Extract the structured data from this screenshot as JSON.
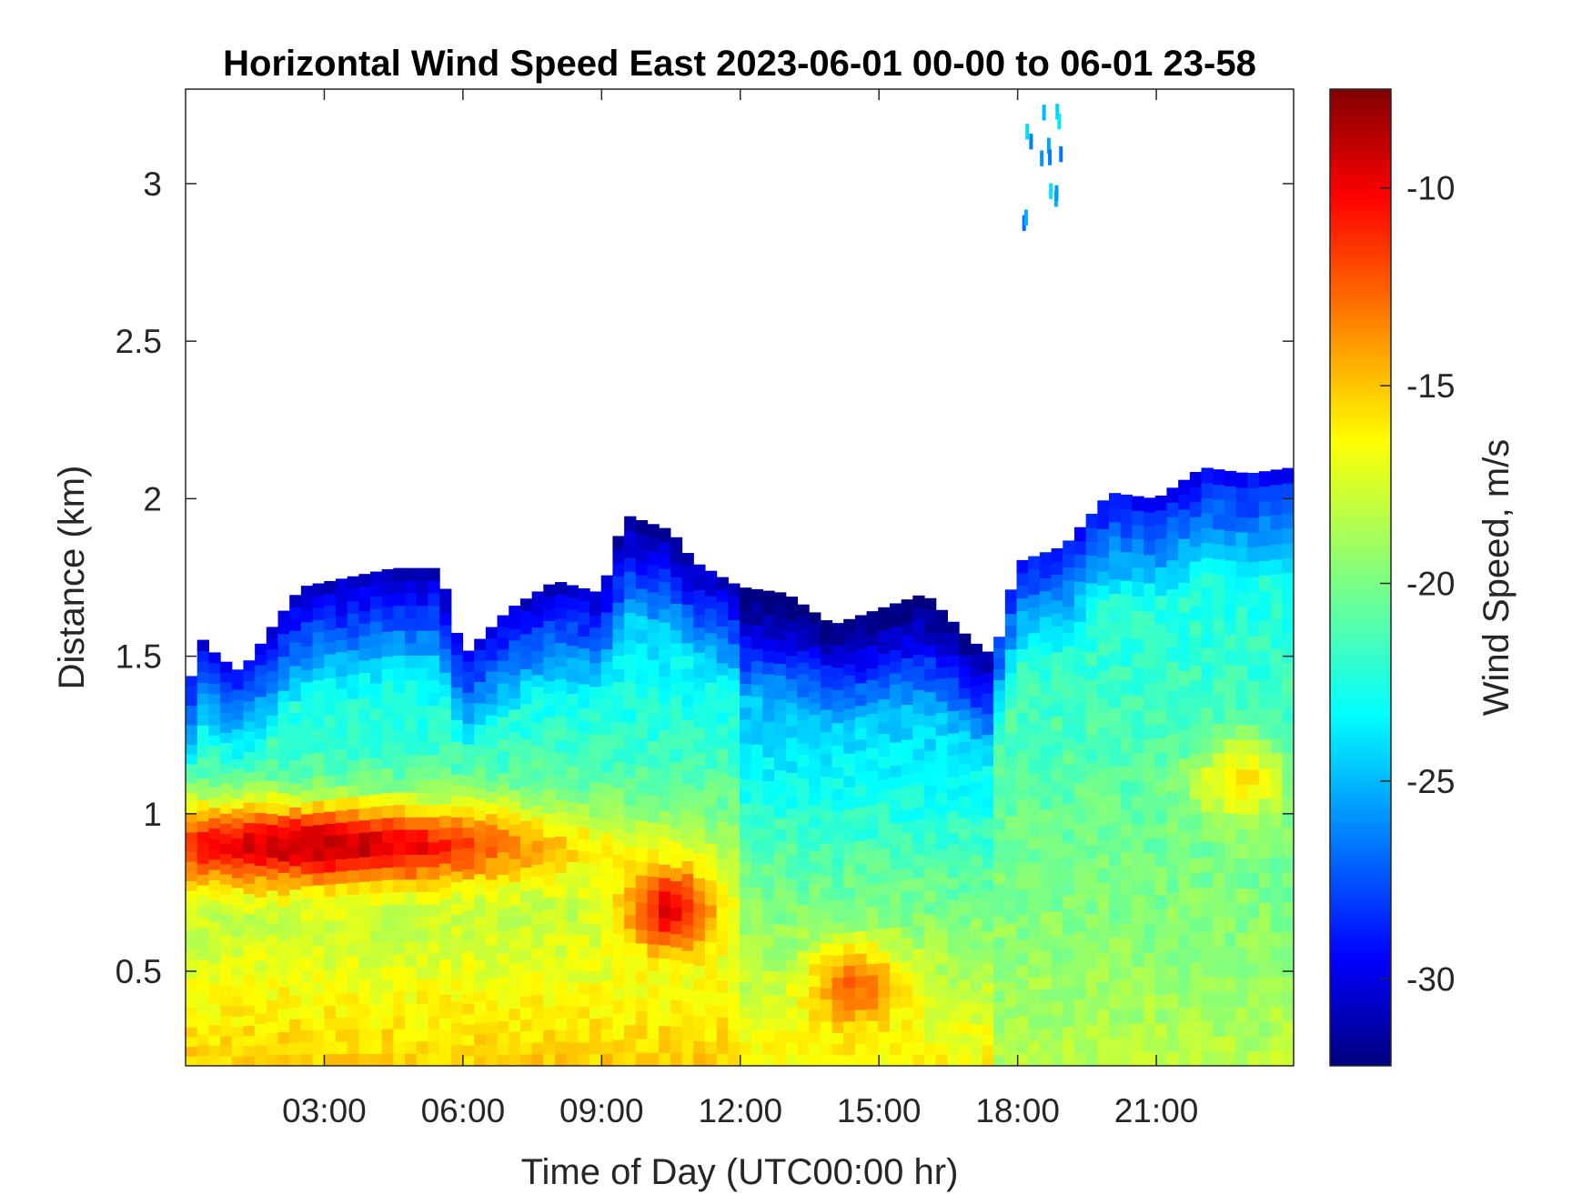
{
  "chart_data": {
    "type": "heatmap",
    "title": "Horizontal Wind Speed East 2023-06-01 00-00 to 06-01 23-58",
    "xlabel": "Time of Day (UTC00:00 hr)",
    "ylabel": "Distance (km)",
    "colorbar_label": "Wind Speed, m/s",
    "x_unit": "hours",
    "xlim": [
      0,
      23.97
    ],
    "ylim": [
      0.2,
      3.3
    ],
    "clim": [
      -32.2,
      -7.5
    ],
    "colormap": "jet",
    "x_ticks": [
      3,
      6,
      9,
      12,
      15,
      18,
      21
    ],
    "x_tick_labels": [
      "03:00",
      "06:00",
      "09:00",
      "12:00",
      "15:00",
      "18:00",
      "21:00"
    ],
    "y_ticks": [
      0.5,
      1,
      1.5,
      2,
      2.5,
      3
    ],
    "y_tick_labels": [
      "0.5",
      "1",
      "1.5",
      "2",
      "2.5",
      "3"
    ],
    "colorbar_ticks": [
      -30,
      -25,
      -20,
      -15,
      -10
    ],
    "colorbar_tick_labels": [
      "-30",
      "-25",
      "-20",
      "-15",
      "-10"
    ],
    "grid": false,
    "data_top_km": [
      [
        0,
        1.2
      ],
      [
        0.2,
        1.58
      ],
      [
        0.7,
        1.5
      ],
      [
        1.2,
        1.45
      ],
      [
        2,
        1.62
      ],
      [
        2.5,
        1.72
      ],
      [
        3.5,
        1.75
      ],
      [
        4.5,
        1.78
      ],
      [
        5.5,
        1.78
      ],
      [
        6,
        1.5
      ],
      [
        7,
        1.65
      ],
      [
        8,
        1.74
      ],
      [
        9,
        1.7
      ],
      [
        9.5,
        1.95
      ],
      [
        10.5,
        1.9
      ],
      [
        11,
        1.8
      ],
      [
        12,
        1.72
      ],
      [
        13,
        1.7
      ],
      [
        14,
        1.6
      ],
      [
        15,
        1.65
      ],
      [
        16,
        1.7
      ],
      [
        17,
        1.55
      ],
      [
        17.5,
        1.5
      ],
      [
        18,
        1.8
      ],
      [
        19,
        1.85
      ],
      [
        20,
        2.02
      ],
      [
        21,
        2.0
      ],
      [
        22,
        2.1
      ],
      [
        23,
        2.08
      ],
      [
        23.97,
        2.1
      ]
    ],
    "features": [
      {
        "name": "strong-jet",
        "t_start": 0,
        "t_end": 5.8,
        "height_km": 0.9,
        "wind_speed_ms": -9
      },
      {
        "name": "red-patch",
        "t_center": 10.5,
        "height_km": 0.7,
        "wind_speed_ms": -10
      },
      {
        "name": "orange-low-patch",
        "t_center": 14.5,
        "height_km": 0.45,
        "wind_speed_ms": -13
      },
      {
        "name": "yellow-patch",
        "t_center": 22.8,
        "height_km": 1.1,
        "wind_speed_ms": -16
      },
      {
        "name": "upper-streak",
        "t_center": 18.5,
        "height_km": 3.0,
        "wind_speed_ms": -25
      }
    ]
  }
}
